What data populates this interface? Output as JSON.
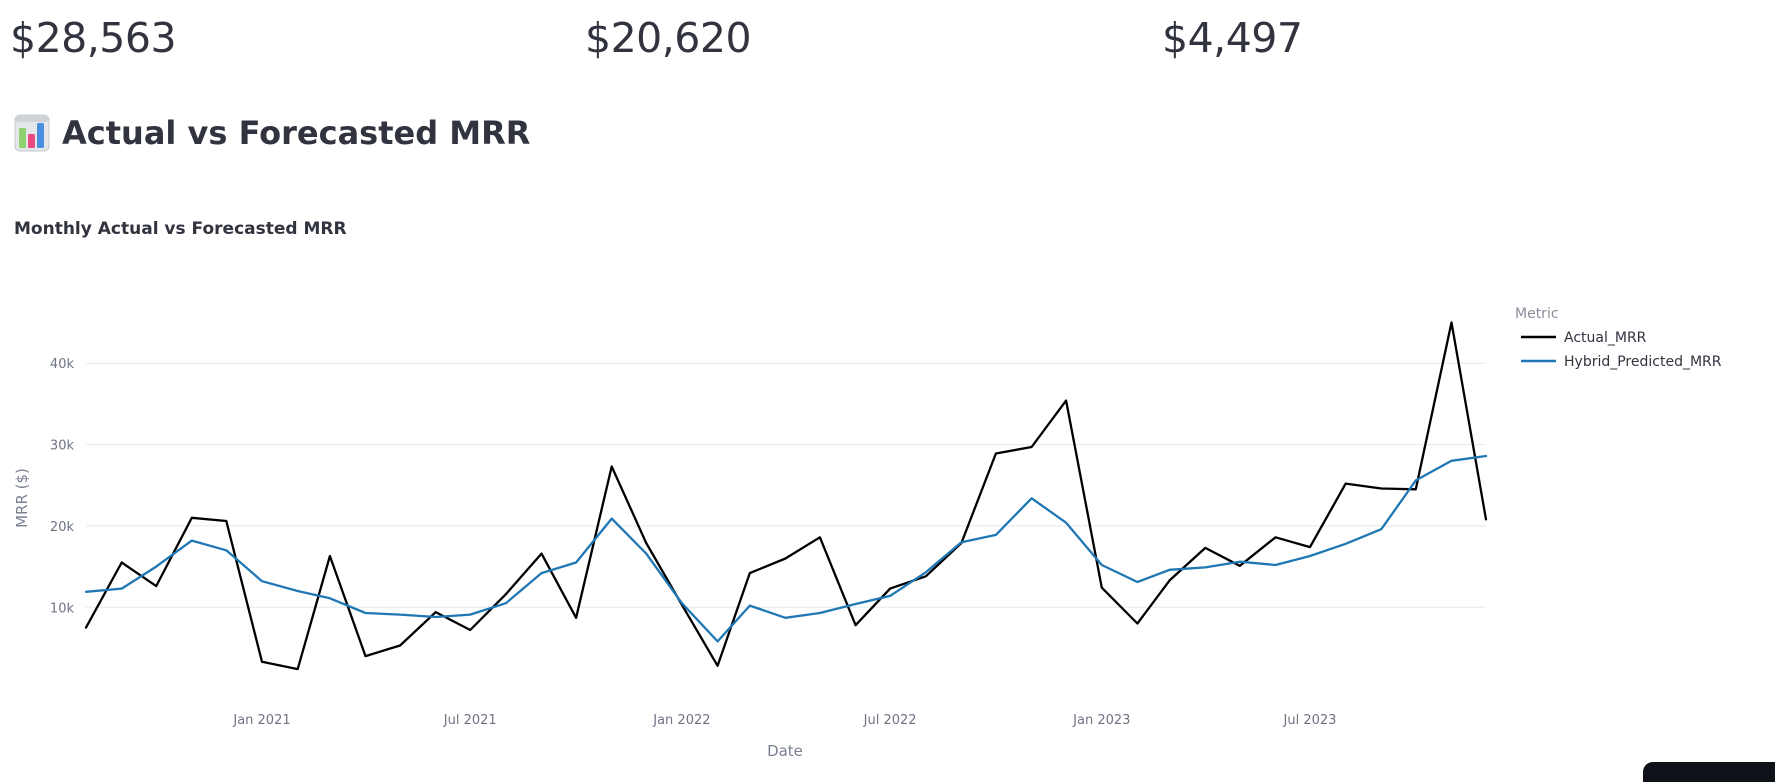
{
  "metrics": [
    {
      "value": "$28,563"
    },
    {
      "value": "$20,620"
    },
    {
      "value": "$4,497"
    }
  ],
  "section": {
    "icon": "bar-chart-emoji-icon",
    "title": "Actual vs Forecasted MRR"
  },
  "chart_data": {
    "type": "line",
    "title": "Monthly Actual vs Forecasted MRR",
    "xlabel": "Date",
    "ylabel": "MRR ($)",
    "x": [
      "2020-08-01",
      "2020-09-01",
      "2020-10-01",
      "2020-11-01",
      "2020-12-01",
      "2021-01-01",
      "2021-02-01",
      "2021-03-01",
      "2021-04-01",
      "2021-05-01",
      "2021-06-01",
      "2021-07-01",
      "2021-08-01",
      "2021-09-01",
      "2021-10-01",
      "2021-11-01",
      "2021-12-01",
      "2022-01-01",
      "2022-02-01",
      "2022-03-01",
      "2022-04-01",
      "2022-05-01",
      "2022-06-01",
      "2022-07-01",
      "2022-08-01",
      "2022-09-01",
      "2022-10-01",
      "2022-11-01",
      "2022-12-01",
      "2023-01-01",
      "2023-02-01",
      "2023-03-01",
      "2023-04-01",
      "2023-05-01",
      "2023-06-01",
      "2023-07-01",
      "2023-08-01",
      "2023-09-01",
      "2023-10-01",
      "2023-11-01",
      "2023-12-01"
    ],
    "series": [
      {
        "name": "Actual_MRR",
        "color": "#000000",
        "values": [
          7500,
          15500,
          12600,
          21000,
          20600,
          3300,
          2400,
          16300,
          4000,
          5300,
          9400,
          7200,
          11600,
          16600,
          8700,
          27300,
          17900,
          10300,
          2800,
          14200,
          16000,
          18600,
          7800,
          12300,
          13800,
          17900,
          28900,
          29700,
          35400,
          12400,
          8000,
          13300,
          17300,
          15100,
          18600,
          17400,
          25200,
          24600,
          24500,
          45000,
          20800
        ]
      },
      {
        "name": "Hybrid_Predicted_MRR",
        "color": "#1f77b4",
        "values": [
          11900,
          12300,
          15000,
          18200,
          17000,
          13200,
          12000,
          11100,
          9300,
          9100,
          8800,
          9100,
          10500,
          14200,
          15500,
          20900,
          16600,
          10500,
          5800,
          10200,
          8700,
          9300,
          10400,
          11400,
          14300,
          18000,
          18900,
          23400,
          20400,
          15200,
          13100,
          14600,
          14900,
          15600,
          15200,
          16300,
          17800,
          19600,
          25600,
          28000,
          28600
        ]
      }
    ],
    "xticks": [
      {
        "label": "Jan 2021",
        "date": "2021-01-01"
      },
      {
        "label": "Jul 2021",
        "date": "2021-07-01"
      },
      {
        "label": "Jan 2022",
        "date": "2022-01-01"
      },
      {
        "label": "Jul 2022",
        "date": "2022-07-01"
      },
      {
        "label": "Jan 2023",
        "date": "2023-01-01"
      },
      {
        "label": "Jul 2023",
        "date": "2023-07-01"
      }
    ],
    "yticks": [
      {
        "label": "10k",
        "value": 10000
      },
      {
        "label": "20k",
        "value": 20000
      },
      {
        "label": "30k",
        "value": 30000
      },
      {
        "label": "40k",
        "value": 40000
      }
    ],
    "xlim": [
      "2020-08-01",
      "2023-12-01"
    ],
    "ylim": [
      -1400,
      49000
    ],
    "grid": true,
    "legend": {
      "title": "Metric",
      "position": "right"
    }
  }
}
